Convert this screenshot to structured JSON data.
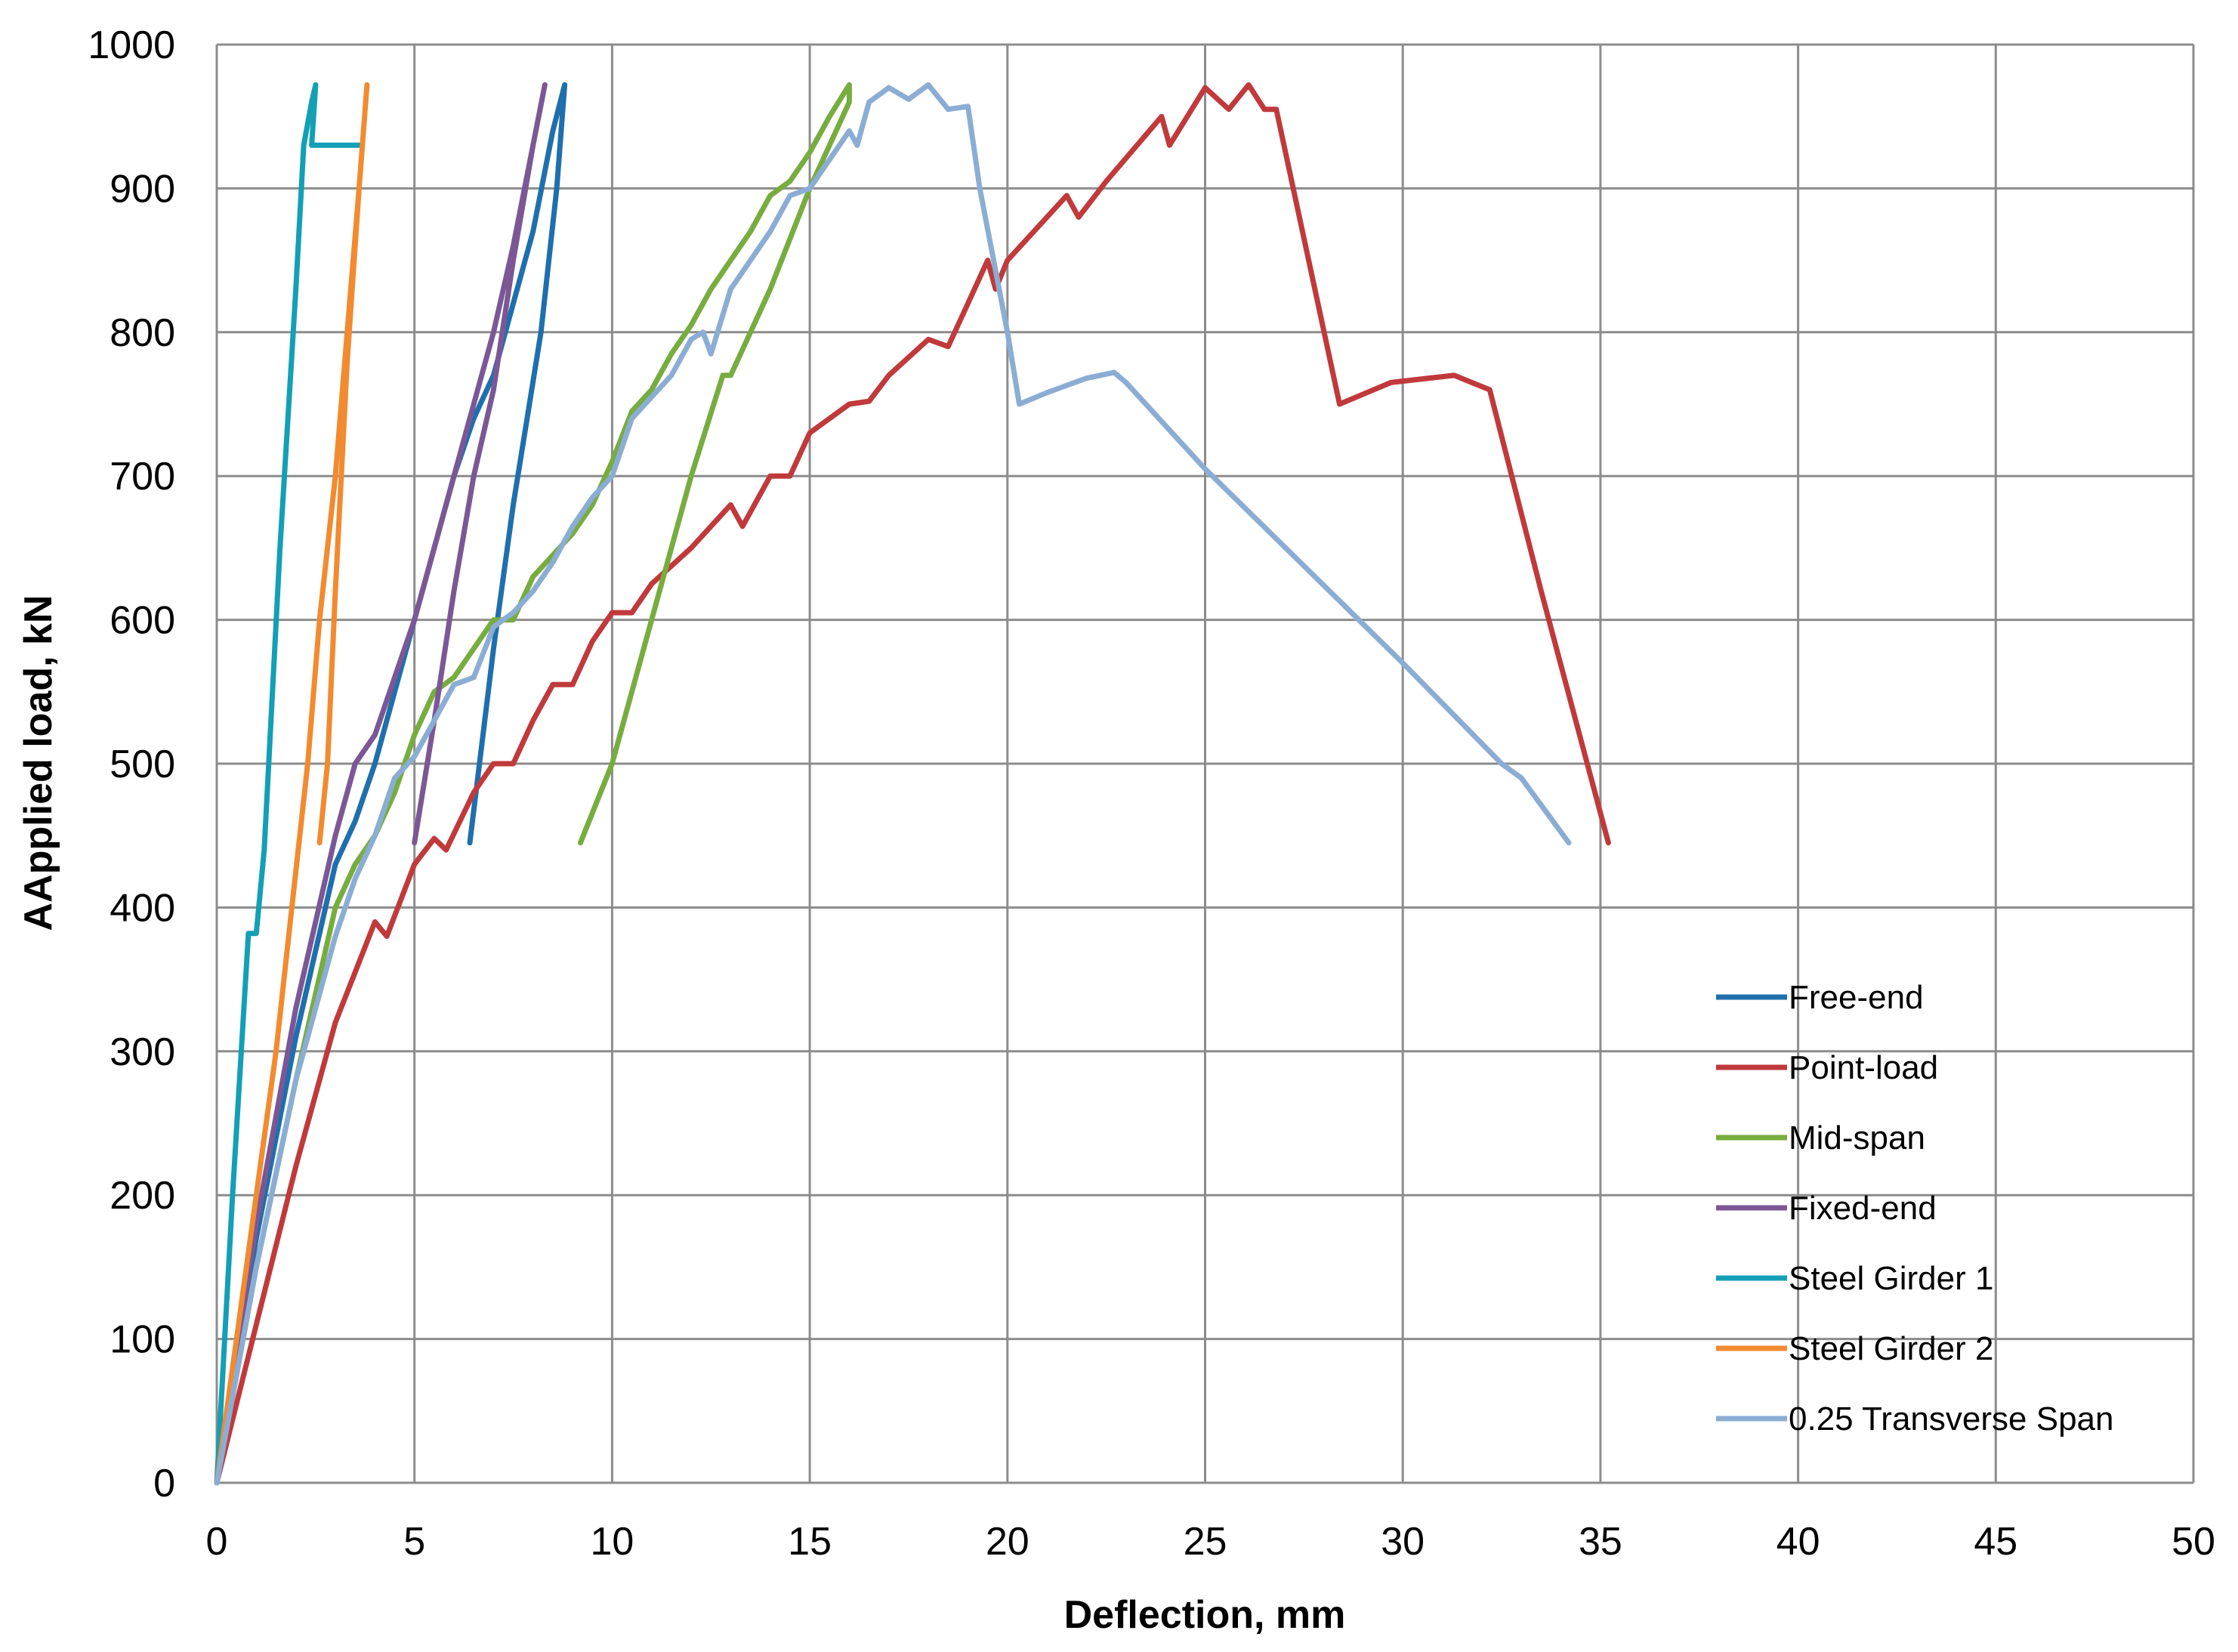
{
  "chart_data": {
    "type": "line",
    "title": "",
    "xlabel": "Deflection, mm",
    "ylabel": "AApplied load, kN",
    "xlim": [
      0,
      50
    ],
    "ylim": [
      0,
      1000
    ],
    "xticks": [
      "0",
      "5",
      "10",
      "15",
      "20",
      "25",
      "30",
      "35",
      "40",
      "45",
      "50"
    ],
    "yticks": [
      "0",
      "100",
      "200",
      "300",
      "400",
      "500",
      "600",
      "700",
      "800",
      "900",
      "1000"
    ],
    "grid": true,
    "legend_position": "bottom-right",
    "series": [
      {
        "name": "Free-end",
        "color": "#1f6fad",
        "points": [
          [
            0,
            0
          ],
          [
            1,
            170
          ],
          [
            2,
            310
          ],
          [
            3,
            430
          ],
          [
            3.5,
            460
          ],
          [
            4,
            500
          ],
          [
            4.5,
            550
          ],
          [
            5,
            600
          ],
          [
            5.5,
            650
          ],
          [
            6,
            700
          ],
          [
            6.5,
            740
          ],
          [
            7,
            770
          ],
          [
            7.5,
            820
          ],
          [
            8,
            870
          ],
          [
            8.5,
            940
          ],
          [
            8.8,
            972
          ],
          [
            8.6,
            900
          ],
          [
            8.2,
            800
          ],
          [
            7.5,
            680
          ],
          [
            7,
            580
          ],
          [
            6.4,
            445
          ]
        ]
      },
      {
        "name": "Point-load",
        "color": "#c0393b",
        "points": [
          [
            0,
            0
          ],
          [
            1,
            110
          ],
          [
            2,
            220
          ],
          [
            3,
            320
          ],
          [
            4,
            390
          ],
          [
            4.3,
            380
          ],
          [
            5,
            430
          ],
          [
            5.5,
            448
          ],
          [
            5.8,
            440
          ],
          [
            6.5,
            480
          ],
          [
            7,
            500
          ],
          [
            7.5,
            500
          ],
          [
            8,
            530
          ],
          [
            8.5,
            555
          ],
          [
            9,
            555
          ],
          [
            9.5,
            585
          ],
          [
            10,
            605
          ],
          [
            10.5,
            605
          ],
          [
            11,
            625
          ],
          [
            12,
            650
          ],
          [
            13,
            680
          ],
          [
            13.3,
            665
          ],
          [
            14,
            700
          ],
          [
            14.5,
            700
          ],
          [
            15,
            730
          ],
          [
            16,
            750
          ],
          [
            16.5,
            752
          ],
          [
            17,
            770
          ],
          [
            18,
            795
          ],
          [
            18.5,
            790
          ],
          [
            19,
            820
          ],
          [
            19.5,
            850
          ],
          [
            19.7,
            830
          ],
          [
            20,
            850
          ],
          [
            21,
            880
          ],
          [
            21.5,
            895
          ],
          [
            21.8,
            880
          ],
          [
            22.5,
            905
          ],
          [
            23.9,
            950
          ],
          [
            24.1,
            930
          ],
          [
            25,
            970
          ],
          [
            25.6,
            955
          ],
          [
            26.1,
            972
          ],
          [
            26.5,
            955
          ],
          [
            26.8,
            955
          ],
          [
            28.4,
            750
          ],
          [
            29.7,
            765
          ],
          [
            31.3,
            770
          ],
          [
            32.2,
            760
          ],
          [
            33.5,
            620
          ],
          [
            35.2,
            445
          ]
        ]
      },
      {
        "name": "Mid-span",
        "color": "#77ac3f",
        "points": [
          [
            0,
            0
          ],
          [
            1,
            150
          ],
          [
            2,
            280
          ],
          [
            3,
            400
          ],
          [
            3.5,
            430
          ],
          [
            4,
            450
          ],
          [
            4.5,
            480
          ],
          [
            5,
            520
          ],
          [
            5.5,
            550
          ],
          [
            6,
            560
          ],
          [
            6.5,
            580
          ],
          [
            7,
            600
          ],
          [
            7.5,
            600
          ],
          [
            8,
            630
          ],
          [
            9,
            660
          ],
          [
            9.5,
            680
          ],
          [
            10,
            710
          ],
          [
            10.5,
            745
          ],
          [
            11,
            760
          ],
          [
            11.5,
            785
          ],
          [
            12,
            805
          ],
          [
            12.5,
            830
          ],
          [
            13,
            850
          ],
          [
            13.5,
            870
          ],
          [
            14,
            895
          ],
          [
            14.5,
            905
          ],
          [
            15,
            925
          ],
          [
            15.5,
            950
          ],
          [
            16,
            972
          ],
          [
            16,
            960
          ],
          [
            15,
            900
          ],
          [
            14,
            830
          ],
          [
            13,
            770
          ],
          [
            12.8,
            770
          ],
          [
            12,
            700
          ],
          [
            11,
            600
          ],
          [
            10,
            500
          ],
          [
            9.2,
            445
          ]
        ]
      },
      {
        "name": "Fixed-end",
        "color": "#7b5796",
        "points": [
          [
            0,
            0
          ],
          [
            1,
            180
          ],
          [
            2,
            330
          ],
          [
            3,
            450
          ],
          [
            3.5,
            500
          ],
          [
            4,
            520
          ],
          [
            4.5,
            560
          ],
          [
            5,
            600
          ],
          [
            5.5,
            650
          ],
          [
            6,
            700
          ],
          [
            6.5,
            750
          ],
          [
            7,
            800
          ],
          [
            7.5,
            860
          ],
          [
            8,
            930
          ],
          [
            8.3,
            972
          ],
          [
            8,
            930
          ],
          [
            7.5,
            850
          ],
          [
            7,
            760
          ],
          [
            6.5,
            700
          ],
          [
            6,
            620
          ],
          [
            5.5,
            530
          ],
          [
            5,
            445
          ]
        ]
      },
      {
        "name": "Steel Girder 1",
        "color": "#139fb6",
        "points": [
          [
            0,
            0
          ],
          [
            0.4,
            200
          ],
          [
            0.8,
            382
          ],
          [
            1.0,
            382
          ],
          [
            1.2,
            440
          ],
          [
            1.6,
            650
          ],
          [
            2.0,
            830
          ],
          [
            2.2,
            930
          ],
          [
            2.4,
            960
          ],
          [
            2.5,
            972
          ],
          [
            2.4,
            930
          ],
          [
            3.6,
            930
          ]
        ]
      },
      {
        "name": "Steel Girder 2",
        "color": "#f28a30",
        "points": [
          [
            0,
            0
          ],
          [
            0.5,
            100
          ],
          [
            1,
            200
          ],
          [
            1.5,
            300
          ],
          [
            1.9,
            400
          ],
          [
            2.3,
            500
          ],
          [
            2.6,
            600
          ],
          [
            3,
            700
          ],
          [
            3.3,
            800
          ],
          [
            3.6,
            900
          ],
          [
            3.8,
            972
          ],
          [
            3.6,
            900
          ],
          [
            3.3,
            780
          ],
          [
            3,
            620
          ],
          [
            2.8,
            500
          ],
          [
            2.6,
            445
          ]
        ]
      },
      {
        "name": "0.25 Transverse Span",
        "color": "#8badd4",
        "points": [
          [
            0,
            0
          ],
          [
            1,
            150
          ],
          [
            2,
            280
          ],
          [
            3,
            380
          ],
          [
            3.5,
            420
          ],
          [
            4,
            450
          ],
          [
            4.5,
            490
          ],
          [
            5,
            505
          ],
          [
            5.5,
            530
          ],
          [
            6,
            555
          ],
          [
            6.5,
            560
          ],
          [
            7,
            595
          ],
          [
            7.5,
            605
          ],
          [
            8,
            620
          ],
          [
            8.5,
            640
          ],
          [
            9,
            665
          ],
          [
            9.5,
            685
          ],
          [
            10,
            700
          ],
          [
            10.5,
            740
          ],
          [
            11,
            755
          ],
          [
            11.5,
            770
          ],
          [
            12,
            795
          ],
          [
            12.3,
            800
          ],
          [
            12.5,
            785
          ],
          [
            13,
            830
          ],
          [
            13.5,
            850
          ],
          [
            14,
            870
          ],
          [
            14.5,
            895
          ],
          [
            15,
            900
          ],
          [
            15.5,
            920
          ],
          [
            16,
            940
          ],
          [
            16.2,
            930
          ],
          [
            16.5,
            960
          ],
          [
            17,
            970
          ],
          [
            17.5,
            962
          ],
          [
            18,
            972
          ],
          [
            18.5,
            955
          ],
          [
            19,
            957
          ],
          [
            19.3,
            900
          ],
          [
            20,
            800
          ],
          [
            20.3,
            750
          ],
          [
            21,
            758
          ],
          [
            22,
            768
          ],
          [
            22.7,
            772
          ],
          [
            23,
            765
          ],
          [
            25,
            705
          ],
          [
            30,
            570
          ],
          [
            32.5,
            500
          ],
          [
            33,
            490
          ],
          [
            34.2,
            445
          ]
        ]
      }
    ]
  }
}
